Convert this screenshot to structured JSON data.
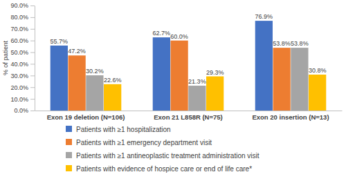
{
  "chart_data": {
    "type": "bar",
    "y_label": "% of patient",
    "categories": [
      "Exon 19 deletion (N=106)",
      "Exon 21 L858R (N=75)",
      "Exon 20 insertion (N=13)"
    ],
    "series": [
      {
        "name": "Patients with ≥1 hospitalization",
        "color": "#4472c4",
        "values": [
          55.7,
          62.7,
          76.9
        ],
        "value_labels": [
          "55.7%",
          "62.7%",
          "76.9%"
        ]
      },
      {
        "name": "Patients with ≥1 emergency department visit",
        "color": "#ed7d31",
        "values": [
          47.2,
          60.0,
          53.8
        ],
        "value_labels": [
          "47.2%",
          "60.0%",
          "53.8%"
        ]
      },
      {
        "name": "Patients with ≥1 antineoplastic treatment administration visit",
        "color": "#a5a5a5",
        "values": [
          30.2,
          21.3,
          53.8
        ],
        "value_labels": [
          "30.2%",
          "21.3%",
          "53.8%"
        ]
      },
      {
        "name": "Patients with evidence of hospice care or end of life care*",
        "color": "#ffc000",
        "values": [
          22.6,
          29.3,
          30.8
        ],
        "value_labels": [
          "22.6%",
          "29.3%",
          "30.8%"
        ]
      }
    ],
    "ylim": [
      0,
      90
    ],
    "yticks": [
      {
        "value": 0,
        "label": "0.0%"
      },
      {
        "value": 10,
        "label": "10.0%"
      },
      {
        "value": 20,
        "label": "20.0%"
      },
      {
        "value": 30,
        "label": "30.0%"
      },
      {
        "value": 40,
        "label": "40.0%"
      },
      {
        "value": 50,
        "label": "50.0%"
      },
      {
        "value": 60,
        "label": "60.0%"
      },
      {
        "value": 70,
        "label": "70.0%"
      },
      {
        "value": 80,
        "label": "80.0%"
      },
      {
        "value": 90,
        "label": "90.0%"
      }
    ],
    "grid": false,
    "data_labels": true,
    "legend": "bottom"
  }
}
